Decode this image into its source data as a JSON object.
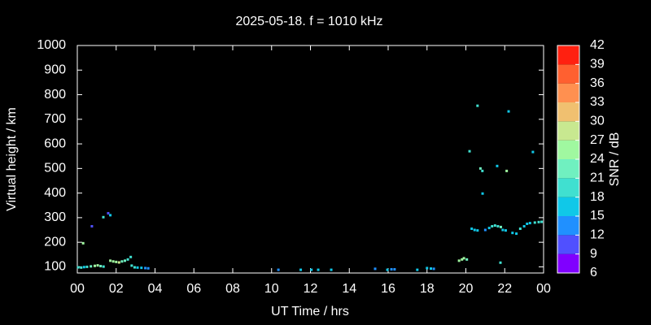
{
  "chart_data": {
    "type": "scatter",
    "title": "2025-05-18. f = 1010 kHz",
    "x_label": "UT Time / hrs",
    "y_label": "Virtual height / km",
    "xlim": [
      0,
      24
    ],
    "xticks": [
      {
        "value": 0,
        "label": "00"
      },
      {
        "value": 2,
        "label": "02"
      },
      {
        "value": 4,
        "label": "04"
      },
      {
        "value": 6,
        "label": "06"
      },
      {
        "value": 8,
        "label": "08"
      },
      10,
      12,
      14,
      16,
      18,
      20,
      22,
      {
        "value": 24,
        "label": "00"
      }
    ],
    "ylim": [
      75,
      1000
    ],
    "yticks": [
      100,
      200,
      300,
      400,
      500,
      600,
      700,
      800,
      900,
      1000
    ],
    "x": [
      0.05,
      0.2,
      0.35,
      0.5,
      0.7,
      0.9,
      1.05,
      1.2,
      1.35,
      0.3,
      0.75,
      1.34,
      1.59,
      1.7,
      1.7,
      1.85,
      2.0,
      2.15,
      2.3,
      2.45,
      2.6,
      2.75,
      2.8,
      2.95,
      3.1,
      3.3,
      3.5,
      3.65,
      10.35,
      11.5,
      12.05,
      12.4,
      13.07,
      15.33,
      15.96,
      16.17,
      16.33,
      17.5,
      18.0,
      18.2,
      18.35,
      19.65,
      19.8,
      19.9,
      20.05,
      20.19,
      20.3,
      20.45,
      20.6,
      20.6,
      20.75,
      20.85,
      20.86,
      21.0,
      21.2,
      21.35,
      21.5,
      21.65,
      21.8,
      21.61,
      21.9,
      22.05,
      21.78,
      22.1,
      22.2,
      22.4,
      22.6,
      22.8,
      23.0,
      23.15,
      23.3,
      23.45,
      23.55,
      23.75,
      23.9
    ],
    "values": [
      98,
      97,
      99,
      100,
      102,
      104,
      106,
      103,
      101,
      196,
      265,
      302,
      318,
      310,
      125,
      122,
      120,
      118,
      122,
      125,
      130,
      140,
      105,
      98,
      97,
      96,
      95,
      94,
      88,
      88,
      88,
      88,
      88,
      92,
      88,
      90,
      90,
      88,
      95,
      93,
      92,
      125,
      130,
      135,
      130,
      570,
      255,
      250,
      248,
      755,
      500,
      490,
      398,
      250,
      258,
      265,
      268,
      265,
      262,
      510,
      250,
      248,
      117,
      490,
      732,
      238,
      235,
      255,
      265,
      275,
      278,
      567,
      280,
      282,
      283
    ],
    "snr": [
      18,
      18,
      15,
      18,
      21,
      24,
      24,
      21,
      18,
      24,
      9,
      18,
      9,
      15,
      24,
      24,
      24,
      27,
      21,
      21,
      18,
      18,
      18,
      18,
      15,
      15,
      12,
      12,
      12,
      15,
      15,
      15,
      15,
      12,
      15,
      12,
      12,
      15,
      15,
      15,
      12,
      24,
      24,
      24,
      21,
      18,
      15,
      15,
      15,
      18,
      21,
      18,
      15,
      12,
      15,
      18,
      18,
      18,
      21,
      15,
      15,
      15,
      18,
      24,
      15,
      15,
      15,
      18,
      15,
      15,
      15,
      15,
      18,
      18,
      18
    ],
    "colorbar": {
      "label": "SNR / dB",
      "lim": [
        6,
        42
      ],
      "ticks": [
        6,
        9,
        12,
        15,
        18,
        21,
        24,
        27,
        30,
        33,
        36,
        39,
        42
      ],
      "colors": [
        "#8000ff",
        "#5050ff",
        "#2090ff",
        "#10c8e8",
        "#40e0d0",
        "#70f0c0",
        "#a0f8a0",
        "#c8e890",
        "#f0c070",
        "#ff9050",
        "#ff6030",
        "#ff2010"
      ]
    }
  }
}
